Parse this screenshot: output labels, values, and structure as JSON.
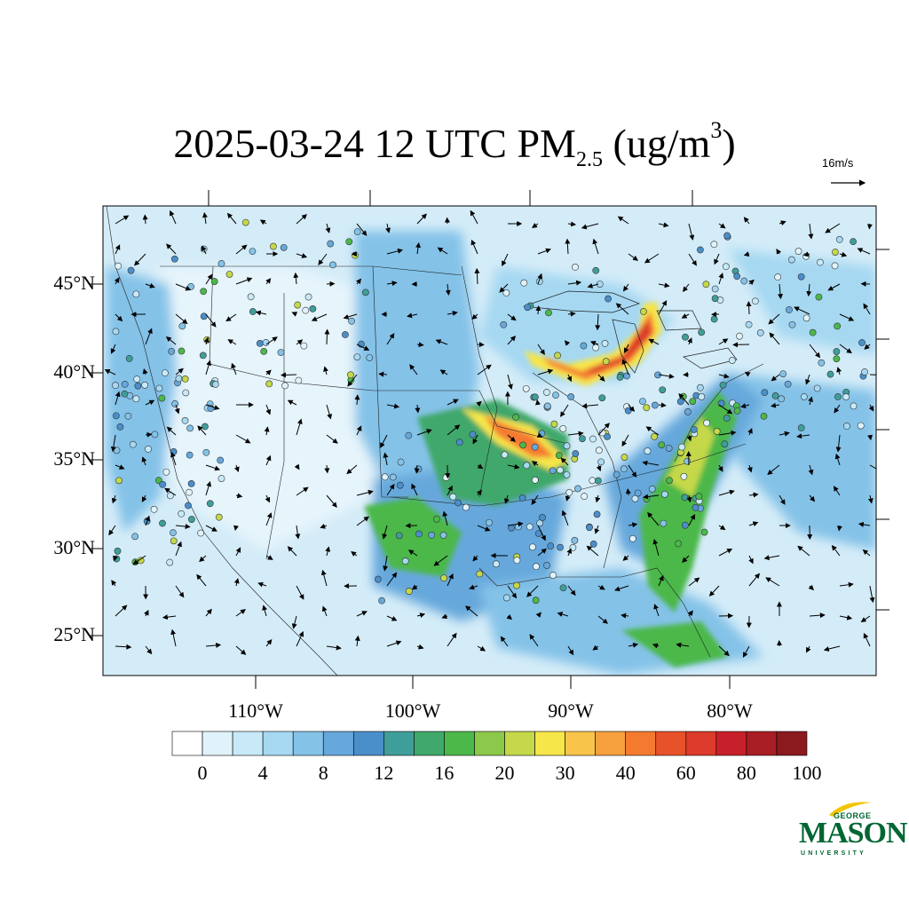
{
  "title": {
    "main": "2025-03-24 12 UTC PM",
    "subscript": "2.5",
    "units_open": " (ug/m",
    "superscript": "3",
    "units_close": ")"
  },
  "wind_reference": {
    "label": "16m/s"
  },
  "latitude_labels": [
    "45°N",
    "40°N",
    "35°N",
    "30°N",
    "25°N"
  ],
  "longitude_labels": [
    "110°W",
    "100°W",
    "90°W",
    "80°W"
  ],
  "colorbar": {
    "tick_labels": [
      "0",
      "4",
      "8",
      "12",
      "16",
      "20",
      "30",
      "40",
      "60",
      "80",
      "100"
    ],
    "colors": [
      "#ffffff",
      "#e0f3fb",
      "#c7e9f8",
      "#a6d8f2",
      "#84c2e8",
      "#66a8dc",
      "#4a8fca",
      "#3f9e9a",
      "#3fa86a",
      "#4cb84a",
      "#8cc84a",
      "#c4d84a",
      "#f6e64a",
      "#f9c44a",
      "#f7a03e",
      "#f47a30",
      "#e8522a",
      "#dc3a2a",
      "#c8202a",
      "#a81e24",
      "#8a1a1e"
    ]
  },
  "logo": {
    "line1": "GEORGE",
    "line2": "MASON",
    "line3": "UNIVERSITY"
  }
}
